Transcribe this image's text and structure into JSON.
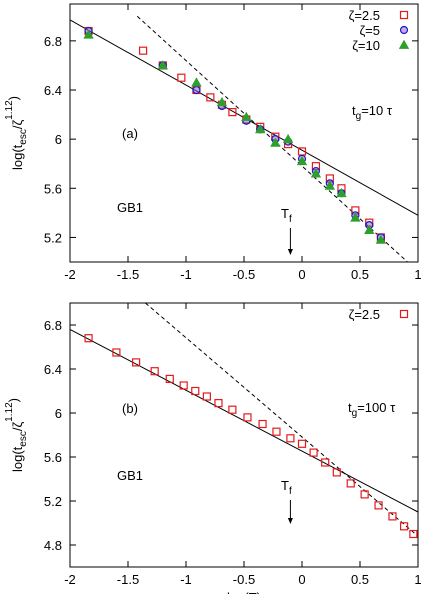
{
  "chart_data": [
    {
      "type": "scatter",
      "xlim": [
        -2,
        1
      ],
      "xticks": [
        -2,
        -1.5,
        -1,
        -0.5,
        0,
        0.5,
        1
      ],
      "ylim": [
        5.0,
        7.1
      ],
      "yticks": [
        5.2,
        5.6,
        6,
        6.4,
        6.8
      ],
      "ylabel": {
        "base": "log(t",
        "sub": "esc",
        "mid": "/ζ",
        "sup": "1.12",
        "end": ")"
      },
      "panel_label": "(a)",
      "group_label": "GB1",
      "tg": {
        "base": "t",
        "sub": "g",
        "rest": "=10 τ"
      },
      "tf": {
        "base": "T",
        "sub": "f",
        "x": -0.1
      },
      "series": [
        {
          "name": "ζ=2.5",
          "color": "#e41a1c",
          "marker": "square",
          "x": [
            -1.84,
            -1.37,
            -1.2,
            -1.04,
            -0.91,
            -0.79,
            -0.69,
            -0.6,
            -0.48,
            -0.36,
            -0.23,
            -0.12,
            0,
            0.12,
            0.24,
            0.34,
            0.46,
            0.58,
            0.68
          ],
          "values": [
            6.88,
            6.72,
            6.6,
            6.5,
            6.4,
            6.34,
            6.28,
            6.22,
            6.16,
            6.1,
            6.02,
            5.96,
            5.9,
            5.78,
            5.68,
            5.6,
            5.42,
            5.32,
            5.2
          ]
        },
        {
          "name": "ζ=5",
          "color": "#1a1acc",
          "marker": "circle",
          "x": [
            -1.84,
            -1.2,
            -0.91,
            -0.69,
            -0.48,
            -0.36,
            -0.23,
            -0.12,
            0,
            0.12,
            0.24,
            0.34,
            0.46,
            0.58,
            0.68
          ],
          "values": [
            6.88,
            6.6,
            6.4,
            6.27,
            6.15,
            6.08,
            6.0,
            5.98,
            5.84,
            5.74,
            5.64,
            5.56,
            5.38,
            5.3,
            5.2
          ]
        },
        {
          "name": "ζ=10",
          "color": "#2ca02c",
          "marker": "triangle",
          "x": [
            -1.84,
            -1.2,
            -0.91,
            -0.69,
            -0.48,
            -0.36,
            -0.23,
            -0.12,
            0,
            0.12,
            0.24,
            0.34,
            0.46,
            0.58,
            0.68
          ],
          "values": [
            6.85,
            6.6,
            6.46,
            6.3,
            6.18,
            6.08,
            5.97,
            6.0,
            5.82,
            5.72,
            5.62,
            5.56,
            5.36,
            5.26,
            5.18
          ]
        }
      ],
      "lines": [
        {
          "style": "solid",
          "x": [
            -2,
            1
          ],
          "values": [
            6.97,
            5.38
          ]
        },
        {
          "style": "dashed",
          "x": [
            -1.42,
            0.91
          ],
          "values": [
            7.0,
            5.0
          ]
        }
      ]
    },
    {
      "type": "scatter",
      "xlim": [
        -2,
        1
      ],
      "xticks": [
        -2,
        -1.5,
        -1,
        -0.5,
        0,
        0.5,
        1
      ],
      "ylim": [
        4.6,
        7.0
      ],
      "yticks": [
        4.8,
        5.2,
        5.6,
        6,
        6.4,
        6.8
      ],
      "xlabel": "log(T)",
      "ylabel": {
        "base": "log(t",
        "sub": "esc",
        "mid": "/ζ",
        "sup": "1.12",
        "end": ")"
      },
      "panel_label": "(b)",
      "group_label": "GB1",
      "tg": {
        "base": "t",
        "sub": "g",
        "rest": "=100 τ"
      },
      "tf": {
        "base": "T",
        "sub": "f",
        "x": -0.1
      },
      "series": [
        {
          "name": "ζ=2.5",
          "color": "#e41a1c",
          "marker": "square",
          "x": [
            -1.84,
            -1.6,
            -1.43,
            -1.27,
            -1.14,
            -1.02,
            -0.92,
            -0.82,
            -0.72,
            -0.6,
            -0.47,
            -0.34,
            -0.22,
            -0.1,
            0,
            0.1,
            0.2,
            0.3,
            0.42,
            0.54,
            0.66,
            0.78,
            0.88,
            0.96
          ],
          "values": [
            6.68,
            6.55,
            6.46,
            6.38,
            6.31,
            6.25,
            6.2,
            6.15,
            6.09,
            6.03,
            5.96,
            5.9,
            5.83,
            5.77,
            5.72,
            5.64,
            5.55,
            5.46,
            5.36,
            5.26,
            5.16,
            5.06,
            4.97,
            4.9
          ]
        }
      ],
      "lines": [
        {
          "style": "solid",
          "x": [
            -2,
            1
          ],
          "values": [
            6.76,
            5.1
          ]
        },
        {
          "style": "dashed",
          "x": [
            -1.35,
            1
          ],
          "values": [
            7.0,
            4.88
          ]
        }
      ]
    }
  ]
}
